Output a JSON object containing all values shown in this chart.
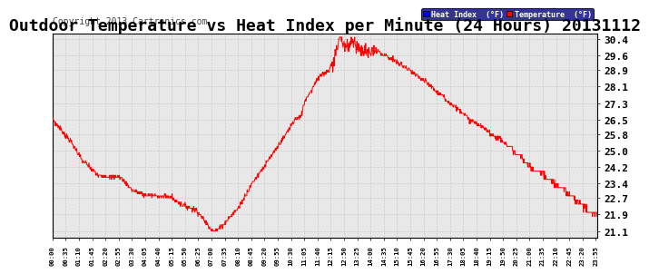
{
  "title": "Outdoor Temperature vs Heat Index per Minute (24 Hours) 20131112",
  "copyright": "Copyright 2013 Cartronics.com",
  "legend_labels": [
    "Heat Index  (°F)",
    "Temperature  (°F)"
  ],
  "legend_bg_colors": [
    "blue",
    "red"
  ],
  "line_color": "red",
  "background_color": "white",
  "plot_bg_color": "#e8e8e8",
  "grid_color": "#cccccc",
  "yticks": [
    21.1,
    21.9,
    22.7,
    23.4,
    24.2,
    25.0,
    25.8,
    26.5,
    27.3,
    28.1,
    28.9,
    29.6,
    30.4
  ],
  "ylim": [
    20.75,
    30.65
  ],
  "title_fontsize": 13,
  "copyright_fontsize": 7,
  "ylabel_fontsize": 8
}
